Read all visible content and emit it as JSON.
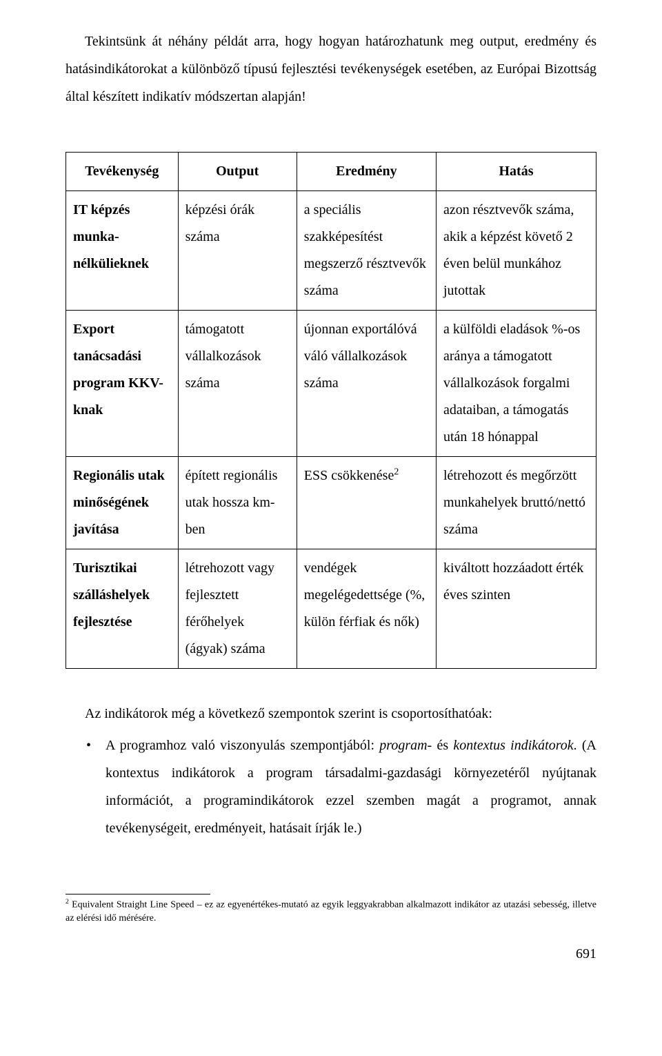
{
  "intro": "Tekintsünk át néhány példát arra, hogy hogyan határozhatunk meg output, eredmény és hatásindikátorokat a különböző típusú fejlesztési tevékenységek esetében, az Európai Bizottság által készített indikatív módszertan alapján!",
  "table": {
    "headers": [
      "Tevékenység",
      "Output",
      "Eredmény",
      "Hatás"
    ],
    "rows": [
      {
        "c1": "IT képzés munka-nélkülieknek",
        "c2": "képzési órák száma",
        "c3": "a speciális szakképesítést megszerző résztvevők száma",
        "c4": "azon résztvevők száma, akik a képzést követő 2 éven belül munkához jutottak"
      },
      {
        "c1": "Export tanácsadási program KKV-knak",
        "c2": "támogatott vállalkozások száma",
        "c3": "újonnan exportálóvá váló vállalkozások száma",
        "c4": "a külföldi eladások %-os aránya a támogatott vállalkozások forgalmi adataiban, a támogatás után 18 hónappal"
      },
      {
        "c1": "Regionális utak minőségének javítása",
        "c2": "épített regionális utak hossza km-ben",
        "c3_html": "ESS csökkenése<sup>2</sup>",
        "c4": "létrehozott és megőrzött munkahelyek bruttó/nettó száma"
      },
      {
        "c1": "Turisztikai szálláshelyek fejlesztése",
        "c2": "létrehozott vagy fejlesztett férőhelyek (ágyak) száma",
        "c3": "vendégek megelégedettsége (%, külön férfiak és nők)",
        "c4": "kiváltott hozzáadott érték éves szinten"
      }
    ]
  },
  "after": "Az indikátorok még a következő szempontok szerint is csoportosíthatóak:",
  "bullet_html": "A programhoz való viszonyulás szempontjából: <span class=\"italic\">program-</span> és <span class=\"italic\">kontextus indikátorok</span>. (A kontextus indikátorok a program társadalmi-gazdasági környezetéről nyújtanak információt, a programindikátorok ezzel szemben magát a programot, annak tevékenységeit, eredményeit, hatásait írják le.)",
  "footnote_html": "<sup>2</sup> Equivalent Straight Line Speed – ez az egyenértékes-mutató az egyik leggyakrabban alkalmazott indikátor az utazási sebesség, illetve az elérési idő mérésére.",
  "page_number": "691"
}
